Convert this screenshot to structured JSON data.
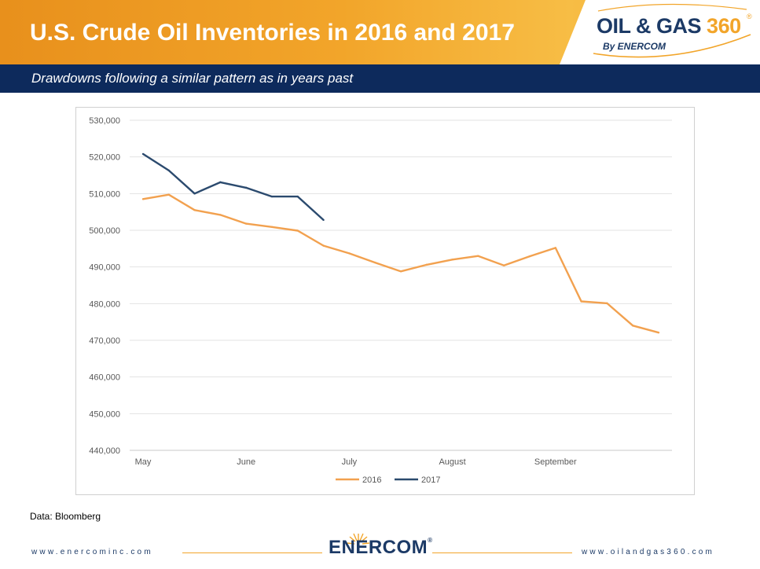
{
  "header": {
    "title": "U.S. Crude Oil Inventories in 2016 and 2017",
    "logo_main": "OIL & GAS",
    "logo_num": "360",
    "logo_reg": "®",
    "logo_sub": "By ENERCOM",
    "subtitle": "Drawdowns following a similar pattern as in years past"
  },
  "chart_data": {
    "type": "line",
    "title": "",
    "xlabel": "",
    "ylabel": "",
    "ylim": [
      440000,
      530000
    ],
    "yticks": [
      440000,
      450000,
      460000,
      470000,
      480000,
      490000,
      500000,
      510000,
      520000,
      530000
    ],
    "ytick_labels": [
      "440,000",
      "450,000",
      "460,000",
      "470,000",
      "480,000",
      "490,000",
      "500,000",
      "510,000",
      "520,000",
      "530,000"
    ],
    "x_tick_labels": [
      "May",
      "June",
      "July",
      "August",
      "September"
    ],
    "grid": true,
    "legend_position": "bottom",
    "series": [
      {
        "name": "2016",
        "color": "#f2a14f",
        "values": [
          508500,
          509700,
          505500,
          504200,
          501800,
          500900,
          499900,
          495800,
          493700,
          491200,
          488800,
          490600,
          492000,
          493000,
          490400,
          492900,
          495200,
          480600,
          480100,
          474000,
          472100
        ]
      },
      {
        "name": "2017",
        "color": "#2b4a6e",
        "values": [
          520800,
          516300,
          510000,
          513100,
          511600,
          509200,
          509200,
          502800
        ]
      }
    ]
  },
  "source": "Data: Bloomberg",
  "footer": {
    "left_url": "www.enercominc.com",
    "right_url": "www.oilandgas360.com",
    "logo": "ENERCOM",
    "logo_reg": "®"
  }
}
